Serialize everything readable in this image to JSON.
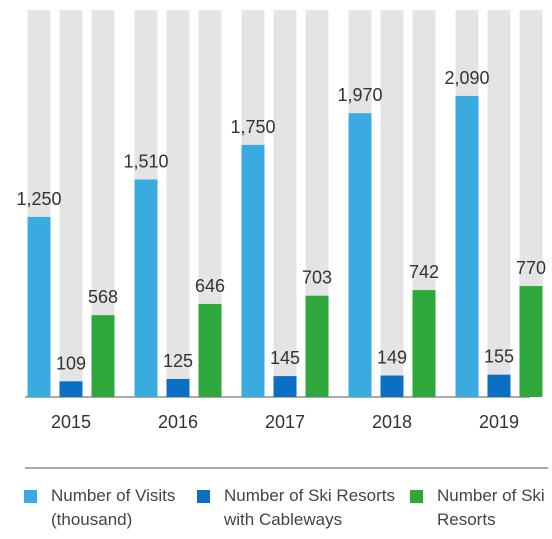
{
  "chart_data": {
    "type": "bar",
    "categories": [
      "2015",
      "2016",
      "2017",
      "2018",
      "2019"
    ],
    "series": [
      {
        "name": "Number of Visits (thousand)",
        "color": "#3aabe0",
        "values": [
          1250,
          1510,
          1750,
          1970,
          2090
        ],
        "value_labels": [
          "1,250",
          "1,510",
          "1,750",
          "1,970",
          "2,090"
        ]
      },
      {
        "name": "Number of Ski Resorts with Cableways",
        "color": "#0b6fc4",
        "values": [
          109,
          125,
          145,
          149,
          155
        ]
      },
      {
        "name": "Number of Ski Resorts",
        "color": "#2ea83a",
        "values": [
          568,
          646,
          703,
          742,
          770
        ]
      }
    ],
    "background_bar_color": "#e4e4e4"
  }
}
